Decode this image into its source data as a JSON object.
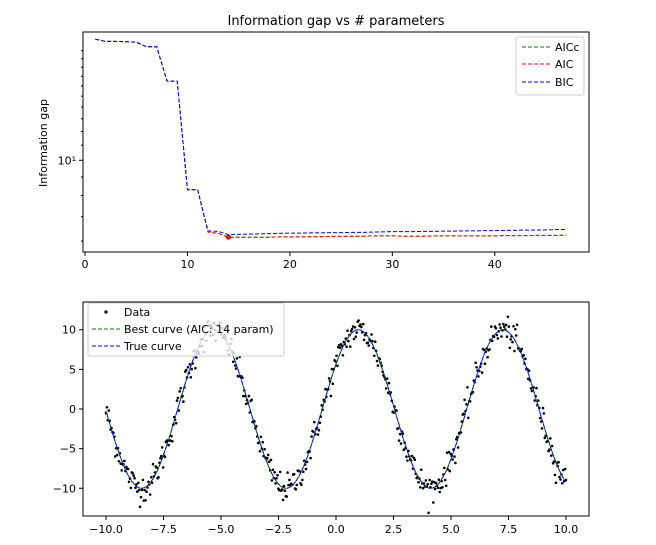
{
  "chart_data": [
    {
      "type": "line",
      "title": "Information gap vs # parameters",
      "xlabel": "",
      "ylabel": "Information gap",
      "xlim": [
        -0.2,
        49.2
      ],
      "ylim": [
        5.6,
        22.5
      ],
      "yscale": "log",
      "grid": false,
      "legend_position": "top-right",
      "x_ticks": [
        0,
        10,
        20,
        30,
        40
      ],
      "y_ticks": [
        {
          "value": 10,
          "label": "10¹"
        }
      ],
      "series": [
        {
          "name": "AICc",
          "color": "#008000",
          "style": "dashed",
          "x": [
            1,
            2,
            3,
            4,
            5,
            6,
            7,
            8,
            9,
            10,
            11,
            12,
            13,
            14,
            15,
            16,
            17,
            18,
            19,
            20,
            21,
            22,
            23,
            24,
            25,
            26,
            27,
            28,
            29,
            30,
            31,
            32,
            33,
            34,
            35,
            36,
            37,
            38,
            39,
            40,
            41,
            42,
            43,
            44,
            45,
            46,
            47
          ],
          "y": [
            21.5,
            21.2,
            21.2,
            21.15,
            21.1,
            20.5,
            20.5,
            16.5,
            16.5,
            8.3,
            8.3,
            6.35,
            6.3,
            6.15,
            6.15,
            6.15,
            6.15,
            6.15,
            6.16,
            6.16,
            6.16,
            6.17,
            6.17,
            6.18,
            6.18,
            6.19,
            6.19,
            6.2,
            6.2,
            6.2,
            6.19,
            6.19,
            6.19,
            6.2,
            6.2,
            6.2,
            6.2,
            6.2,
            6.2,
            6.2,
            6.21,
            6.21,
            6.21,
            6.22,
            6.22,
            6.22,
            6.23
          ]
        },
        {
          "name": "AIC",
          "color": "#ff0000",
          "style": "dashed",
          "x": [
            1,
            2,
            3,
            4,
            5,
            6,
            7,
            8,
            9,
            10,
            11,
            12,
            13,
            14,
            15,
            16,
            17,
            18,
            19,
            20,
            21,
            22,
            23,
            24,
            25,
            26,
            27,
            28,
            29,
            30,
            31,
            32,
            33,
            34,
            35,
            36,
            37,
            38,
            39,
            40,
            41,
            42,
            43,
            44,
            45,
            46,
            47
          ],
          "y": [
            21.5,
            21.2,
            21.2,
            21.15,
            21.1,
            20.5,
            20.5,
            16.5,
            16.5,
            8.3,
            8.3,
            6.35,
            6.3,
            6.15,
            6.15,
            6.15,
            6.15,
            6.15,
            6.16,
            6.16,
            6.16,
            6.17,
            6.17,
            6.18,
            6.18,
            6.19,
            6.19,
            6.2,
            6.2,
            6.2,
            6.19,
            6.19,
            6.19,
            6.2,
            6.2,
            6.2,
            6.2,
            6.2,
            6.2,
            6.2,
            6.21,
            6.21,
            6.21,
            6.22,
            6.22,
            6.22,
            6.23
          ]
        },
        {
          "name": "BIC",
          "color": "#0000ff",
          "style": "dashed",
          "x": [
            1,
            2,
            3,
            4,
            5,
            6,
            7,
            8,
            9,
            10,
            11,
            12,
            13,
            14,
            15,
            16,
            17,
            18,
            19,
            20,
            21,
            22,
            23,
            24,
            25,
            26,
            27,
            28,
            29,
            30,
            31,
            32,
            33,
            34,
            35,
            36,
            37,
            38,
            39,
            40,
            41,
            42,
            43,
            44,
            45,
            46,
            47
          ],
          "y": [
            21.5,
            21.2,
            21.2,
            21.15,
            21.1,
            20.5,
            20.5,
            16.5,
            16.5,
            8.3,
            8.3,
            6.4,
            6.38,
            6.25,
            6.26,
            6.27,
            6.28,
            6.29,
            6.3,
            6.31,
            6.31,
            6.32,
            6.32,
            6.33,
            6.33,
            6.34,
            6.34,
            6.35,
            6.36,
            6.37,
            6.37,
            6.37,
            6.38,
            6.38,
            6.39,
            6.39,
            6.4,
            6.4,
            6.41,
            6.41,
            6.42,
            6.42,
            6.43,
            6.43,
            6.44,
            6.45,
            6.46
          ]
        }
      ],
      "markers": [
        {
          "series": "AICc",
          "x": 14,
          "y": 6.15,
          "color": "#008000"
        },
        {
          "series": "AIC",
          "x": 14,
          "y": 6.15,
          "color": "#ff0000"
        }
      ]
    },
    {
      "type": "scatter",
      "title": "",
      "xlabel": "",
      "ylabel": "",
      "xlim": [
        -11.0,
        11.0
      ],
      "ylim": [
        -13.5,
        13.5
      ],
      "grid": false,
      "legend_position": "top-left",
      "x_ticks": [
        -10.0,
        -7.5,
        -5.0,
        -2.5,
        0.0,
        2.5,
        5.0,
        7.5,
        10.0
      ],
      "x_tick_labels": [
        "−10.0",
        "−7.5",
        "−5.0",
        "−2.5",
        "0.0",
        "2.5",
        "5.0",
        "7.5",
        "10.0"
      ],
      "y_ticks": [
        -10,
        -5,
        0,
        5,
        10
      ],
      "y_tick_labels": [
        "−10",
        "−5",
        "0",
        "5",
        "10"
      ],
      "function": {
        "amplitude": 10,
        "frequency": 1,
        "phase": 0.6,
        "x_range": [
          -10,
          10
        ]
      },
      "data_points": {
        "count": 500,
        "noise_sd": 0.9
      },
      "series": [
        {
          "name": "Data",
          "color": "#000000",
          "style": "points"
        },
        {
          "name": "Best curve (AIC: 14 param)",
          "color": "#008000",
          "style": "dashed"
        },
        {
          "name": "True curve",
          "color": "#0000ff",
          "style": "dashed"
        }
      ]
    }
  ]
}
